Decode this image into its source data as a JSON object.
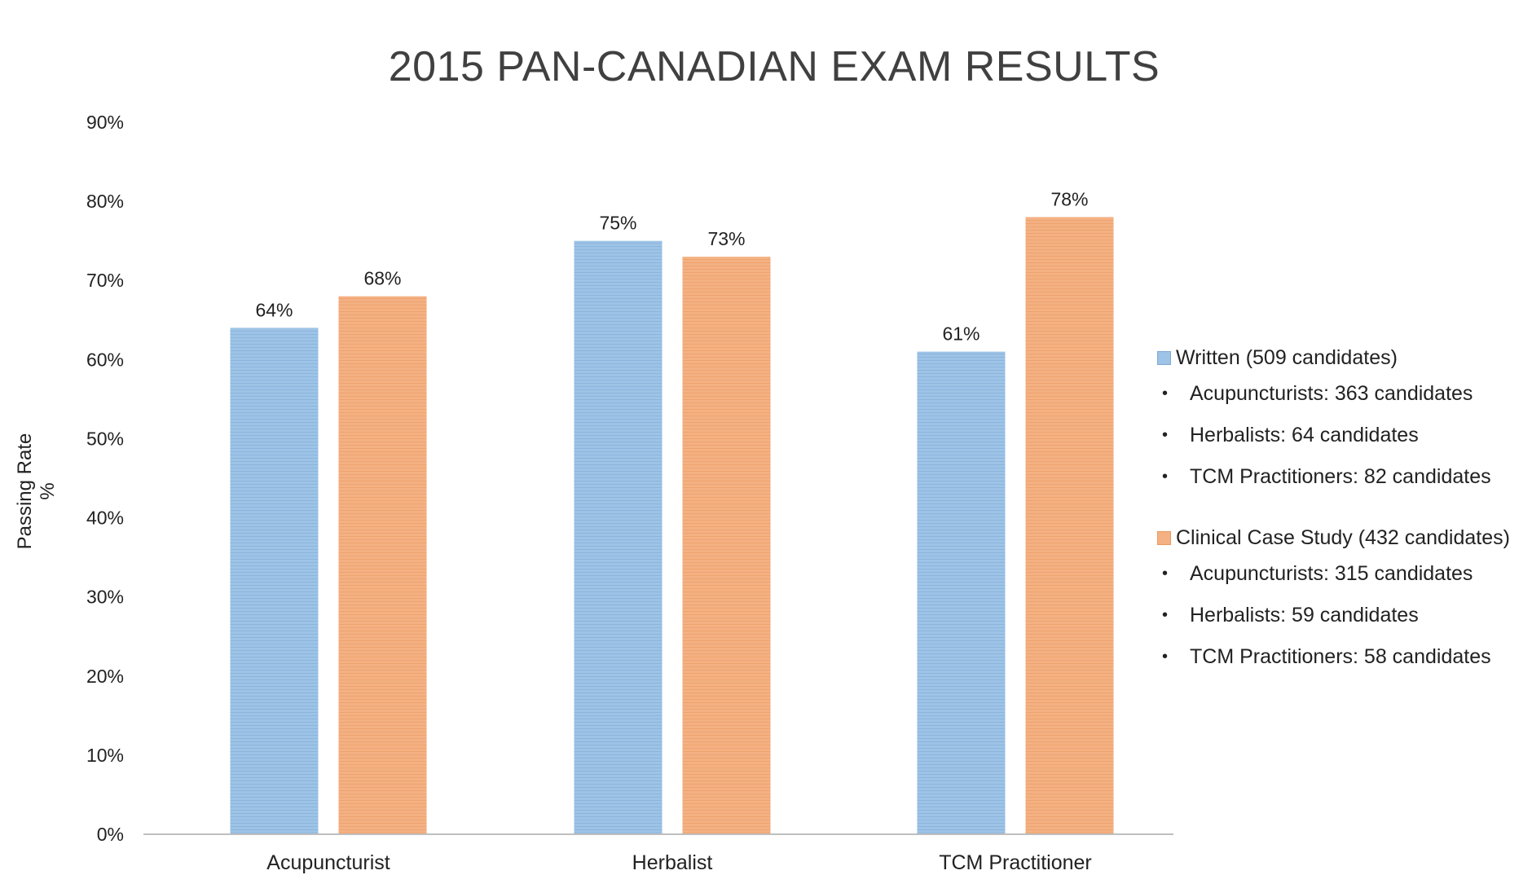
{
  "chart_data": {
    "type": "bar",
    "title": "2015 PAN-CANADIAN EXAM RESULTS",
    "ylabel": "Passing Rate %",
    "xlabel": "",
    "categories": [
      "Acupuncturist",
      "Herbalist",
      "TCM Practitioner"
    ],
    "ylim": [
      0,
      90
    ],
    "yticks": [
      "0%",
      "10%",
      "20%",
      "30%",
      "40%",
      "50%",
      "60%",
      "70%",
      "80%",
      "90%"
    ],
    "series": [
      {
        "name": "Written",
        "values": [
          64,
          75,
          61
        ],
        "labels": [
          "64%",
          "75%",
          "61%"
        ],
        "color": "#9dc3e6"
      },
      {
        "name": "Clinical Case Study",
        "values": [
          68,
          73,
          78
        ],
        "labels": [
          "68%",
          "73%",
          "78%"
        ],
        "color": "#f4b183"
      }
    ],
    "grid": false,
    "legend_position": "right"
  },
  "legend": {
    "written": {
      "label": "Written",
      "count": "(509 candidates)",
      "items": [
        "Acupuncturists: 363 candidates",
        "Herbalists: 64 candidates",
        "TCM Practitioners: 82 candidates"
      ]
    },
    "clinical": {
      "label": "Clinical Case Study",
      "count": "(432 candidates)",
      "items": [
        "Acupuncturists: 315 candidates",
        "Herbalists: 59 candidates",
        "TCM Practitioners: 58 candidates"
      ]
    },
    "bullet": "•"
  }
}
